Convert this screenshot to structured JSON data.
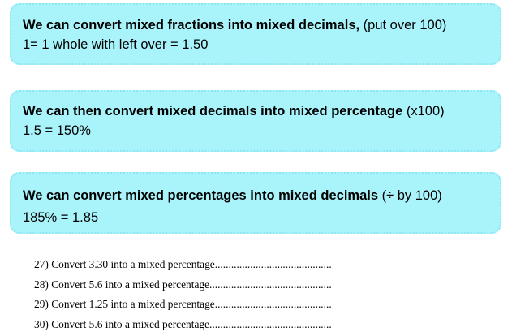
{
  "boxes": [
    {
      "heading": "We can convert mixed fractions into mixed decimals,",
      "note": " (put over 100)",
      "example": "1= 1 whole with left over = 1.50"
    },
    {
      "heading": "We can then convert mixed decimals into mixed percentage",
      "note": " (x100)",
      "example": "1.5 = 150%"
    },
    {
      "heading": "We can convert mixed percentages into mixed decimals",
      "note": " (÷ by 100)",
      "example": "185% = 1.85"
    }
  ],
  "questions": [
    "27) Convert 3.30 into a mixed percentage...........................................",
    "28) Convert 5.6 into a mixed percentage.............................................",
    "29) Convert 1.25 into a mixed percentage...........................................",
    "30) Convert 5.6 into a mixed percentage............................................."
  ],
  "colors": {
    "box_fill": "#a9f3fb",
    "box_border": "#8fe6f0"
  }
}
